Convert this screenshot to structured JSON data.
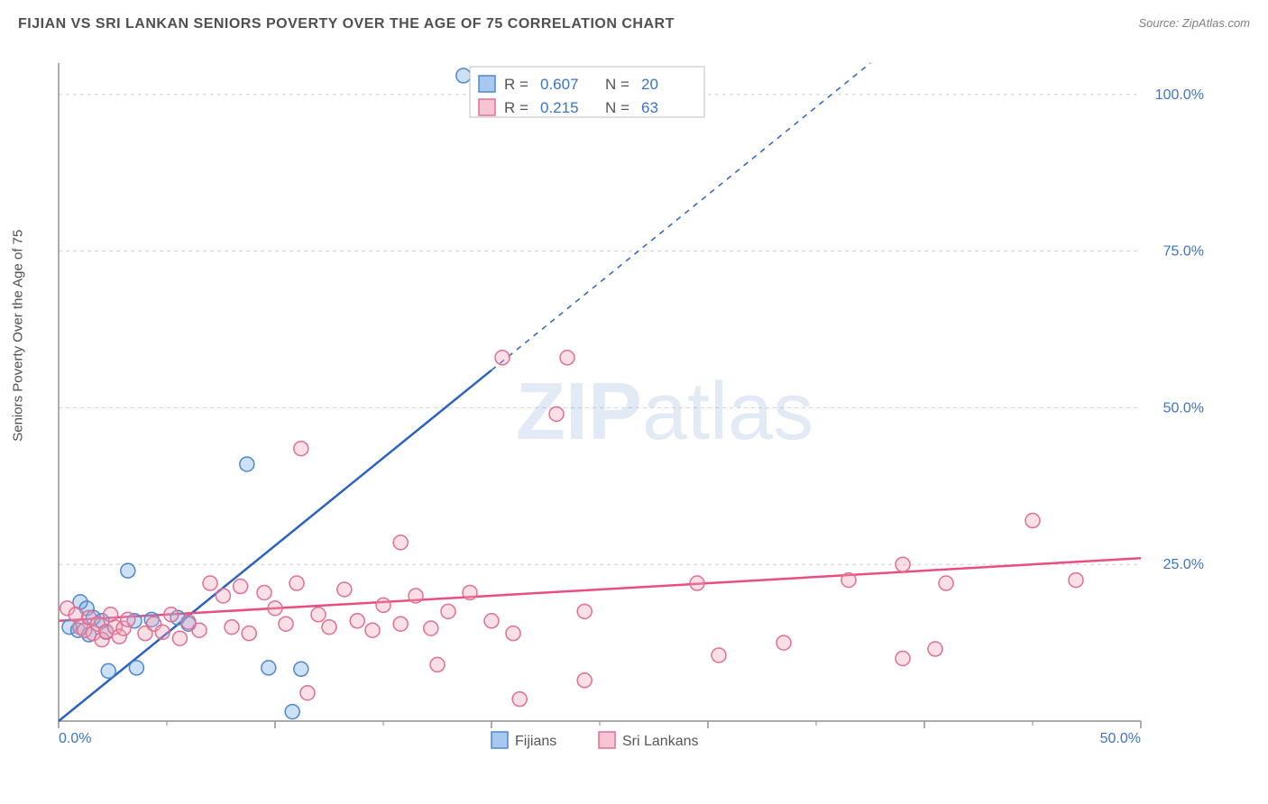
{
  "title": "FIJIAN VS SRI LANKAN SENIORS POVERTY OVER THE AGE OF 75 CORRELATION CHART",
  "source_label": "Source: ZipAtlas.com",
  "ylabel": "Seniors Poverty Over the Age of 75",
  "watermark": "ZIPatlas",
  "chart": {
    "type": "scatter",
    "background_color": "#ffffff",
    "axis_color": "#909090",
    "grid_color": "#d0d0d0",
    "grid_dash": "4 4",
    "tick_label_color": "#3b74c9",
    "tick_label_fontsize": 16,
    "xlim": [
      0,
      50
    ],
    "ylim": [
      0,
      105
    ],
    "x_ticks_major": [
      0,
      10,
      20,
      30,
      40,
      50
    ],
    "x_ticks_minor": [
      5,
      15,
      25,
      35,
      45
    ],
    "x_tick_labels": {
      "0": "0.0%",
      "50": "50.0%"
    },
    "y_ticks": [
      25,
      50,
      75,
      100
    ],
    "y_tick_labels": {
      "25": "25.0%",
      "50": "50.0%",
      "75": "75.0%",
      "100": "100.0%"
    },
    "marker_radius": 8,
    "marker_fill_opacity": 0.35,
    "marker_stroke_width": 1.5,
    "trend_line_width": 2.5,
    "series": [
      {
        "name": "Fijians",
        "color": "#6ea6e6",
        "stroke": "#4d87cc",
        "trend_color": "#2b63c2",
        "trend_dash_beyond": "6 6",
        "trend_start": [
          0,
          0
        ],
        "trend_solid_end": [
          20,
          56
        ],
        "trend_dash_end": [
          37.5,
          105
        ],
        "R": "0.607",
        "N": "20",
        "points": [
          [
            18.7,
            103
          ],
          [
            8.7,
            41
          ],
          [
            3.2,
            24
          ],
          [
            1.0,
            19
          ],
          [
            1.3,
            18
          ],
          [
            1.6,
            16.5
          ],
          [
            2.0,
            16
          ],
          [
            3.5,
            16
          ],
          [
            4.3,
            16.2
          ],
          [
            5.5,
            16.5
          ],
          [
            6.0,
            15.5
          ],
          [
            2.3,
            8.0
          ],
          [
            3.6,
            8.5
          ],
          [
            9.7,
            8.5
          ],
          [
            11.2,
            8.3
          ],
          [
            10.8,
            1.5
          ],
          [
            0.5,
            15
          ],
          [
            0.9,
            14.5
          ],
          [
            1.4,
            13.8
          ],
          [
            2.2,
            14.2
          ]
        ]
      },
      {
        "name": "Sri Lankans",
        "color": "#f2a3b8",
        "stroke": "#e06f92",
        "trend_color": "#e84e7e",
        "trend_start": [
          0,
          16
        ],
        "trend_solid_end": [
          50,
          26
        ],
        "R": "0.215",
        "N": "63",
        "points": [
          [
            11.2,
            43.5
          ],
          [
            20.5,
            58
          ],
          [
            23.5,
            58
          ],
          [
            23.0,
            49
          ],
          [
            15.8,
            28.5
          ],
          [
            0.4,
            18
          ],
          [
            0.8,
            17
          ],
          [
            1.0,
            15
          ],
          [
            1.2,
            14.5
          ],
          [
            1.4,
            16.5
          ],
          [
            1.6,
            14
          ],
          [
            1.8,
            15.5
          ],
          [
            2.0,
            13
          ],
          [
            2.2,
            14.3
          ],
          [
            2.4,
            17
          ],
          [
            2.6,
            15
          ],
          [
            2.8,
            13.5
          ],
          [
            3.0,
            14.8
          ],
          [
            3.2,
            16.2
          ],
          [
            4.0,
            14
          ],
          [
            4.4,
            15.5
          ],
          [
            4.8,
            14.2
          ],
          [
            5.2,
            17
          ],
          [
            5.6,
            13.2
          ],
          [
            6.0,
            15.8
          ],
          [
            6.5,
            14.5
          ],
          [
            7.0,
            22
          ],
          [
            7.6,
            20
          ],
          [
            8.0,
            15
          ],
          [
            8.4,
            21.5
          ],
          [
            8.8,
            14
          ],
          [
            9.5,
            20.5
          ],
          [
            10.0,
            18
          ],
          [
            10.5,
            15.5
          ],
          [
            11.0,
            22
          ],
          [
            12.0,
            17
          ],
          [
            12.5,
            15
          ],
          [
            13.2,
            21
          ],
          [
            13.8,
            16
          ],
          [
            14.5,
            14.5
          ],
          [
            15.0,
            18.5
          ],
          [
            15.8,
            15.5
          ],
          [
            16.5,
            20
          ],
          [
            17.2,
            14.8
          ],
          [
            18.0,
            17.5
          ],
          [
            19.0,
            20.5
          ],
          [
            20.0,
            16
          ],
          [
            21.0,
            14
          ],
          [
            24.3,
            17.5
          ],
          [
            24.3,
            6.5
          ],
          [
            21.3,
            3.5
          ],
          [
            17.5,
            9
          ],
          [
            29.5,
            22
          ],
          [
            30.5,
            10.5
          ],
          [
            33.5,
            12.5
          ],
          [
            36.5,
            22.5
          ],
          [
            39.0,
            25
          ],
          [
            39.0,
            10
          ],
          [
            40.5,
            11.5
          ],
          [
            41.0,
            22
          ],
          [
            45.0,
            32
          ],
          [
            47.0,
            22.5
          ],
          [
            11.5,
            4.5
          ]
        ]
      }
    ],
    "bottom_legend": [
      {
        "label": "Fijians",
        "fill": "#a9c8ef",
        "stroke": "#4d87cc"
      },
      {
        "label": "Sri Lankans",
        "fill": "#f6c4d2",
        "stroke": "#e06f92"
      }
    ],
    "stats_box": {
      "border_color": "#bfbfbf",
      "bg_color": "#ffffff",
      "rows": [
        {
          "swatch_fill": "#a9c8ef",
          "swatch_stroke": "#4d87cc",
          "R_label": "R =",
          "R_val": "0.607",
          "N_label": "N =",
          "N_val": "20"
        },
        {
          "swatch_fill": "#f6c4d2",
          "swatch_stroke": "#e06f92",
          "R_label": "R =",
          "R_val": "0.215",
          "N_label": "N =",
          "N_val": "63"
        }
      ],
      "label_color": "#555555",
      "value_color": "#3b74c9",
      "fontsize": 17
    }
  }
}
